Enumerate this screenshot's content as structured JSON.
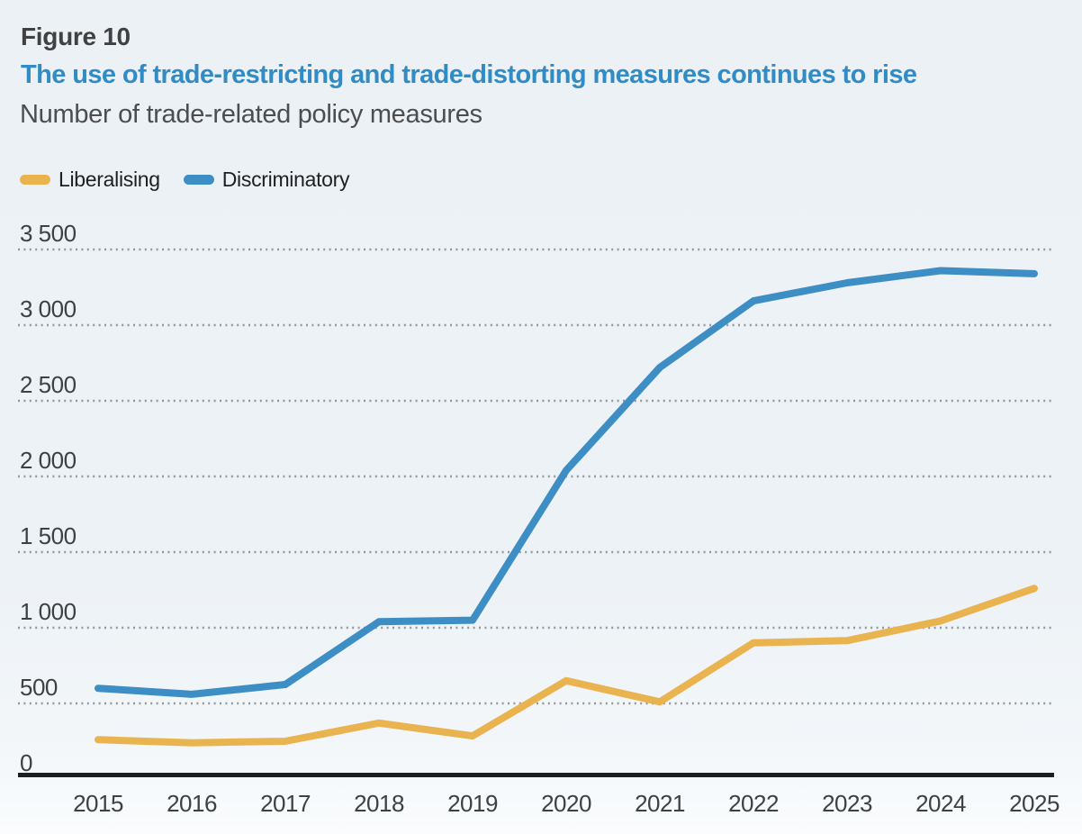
{
  "header": {
    "figure_label": "Figure 10",
    "title": "The use of trade-restricting and trade-distorting measures continues to rise",
    "subtitle": "Number of trade-related policy measures"
  },
  "legend": {
    "position": "top-left",
    "items": [
      {
        "label": "Liberalising",
        "color": "#e9b44f"
      },
      {
        "label": "Discriminatory",
        "color": "#3d8ec4"
      }
    ]
  },
  "colors": {
    "background": "#edf2f6",
    "title_blue": "#318cc5",
    "figure_label_text": "#3f4143",
    "subtitle_text": "#4b4d4f",
    "tick_text": "#3d4143",
    "gridline": "#95989a",
    "axis_line": "#1c1e1f",
    "liberalising_line": "#e9b44f",
    "discriminatory_line": "#3d8ec4"
  },
  "chart_data": {
    "type": "line",
    "title": "The use of trade-restricting and trade-distorting measures continues to rise",
    "subtitle": "Number of trade-related policy measures",
    "xlabel": "",
    "ylabel": "Number of trade-related policy measures",
    "x": [
      2015,
      2016,
      2017,
      2018,
      2019,
      2020,
      2021,
      2022,
      2023,
      2024,
      2025
    ],
    "x_tick_labels": [
      "2015",
      "2016",
      "2017",
      "2018",
      "2019",
      "2020",
      "2021",
      "2022",
      "2023",
      "2024",
      "2025"
    ],
    "y_ticks": [
      0,
      500,
      1000,
      1500,
      2000,
      2500,
      3000,
      3500
    ],
    "y_tick_labels": [
      "0",
      "500",
      "1 000",
      "1 500",
      "2 000",
      "2 500",
      "3 000",
      "3 500"
    ],
    "ylim": [
      0,
      3500
    ],
    "grid": "horizontal-dotted",
    "legend_position": "top-left",
    "series": [
      {
        "name": "Liberalising",
        "color": "#e9b44f",
        "values": [
          260,
          240,
          250,
          370,
          285,
          650,
          510,
          900,
          915,
          1045,
          1260
        ]
      },
      {
        "name": "Discriminatory",
        "color": "#3d8ec4",
        "values": [
          600,
          560,
          625,
          1040,
          1050,
          2040,
          2720,
          3160,
          3280,
          3360,
          3340
        ]
      }
    ]
  }
}
